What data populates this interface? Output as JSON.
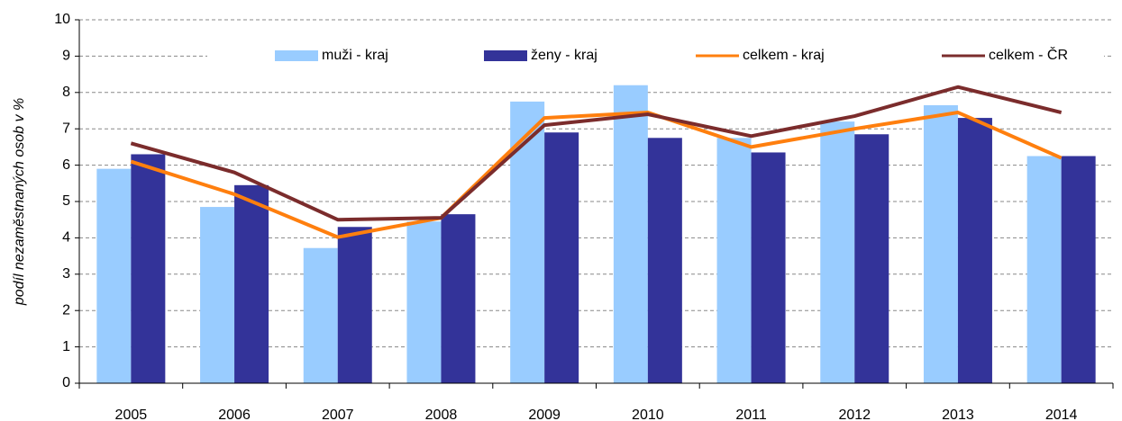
{
  "chart_data": {
    "type": "bar_line",
    "y_label": "podíl nezaměstnaných osob v %",
    "categories": [
      "2005",
      "2006",
      "2007",
      "2008",
      "2009",
      "2010",
      "2011",
      "2012",
      "2013",
      "2014"
    ],
    "series": [
      {
        "name": "muži - kraj",
        "kind": "bar",
        "color": "#99ccff",
        "values": [
          5.9,
          4.85,
          3.72,
          4.45,
          7.75,
          8.2,
          6.75,
          7.2,
          7.65,
          6.25
        ]
      },
      {
        "name": "ženy - kraj",
        "kind": "bar",
        "color": "#333399",
        "values": [
          6.3,
          5.45,
          4.3,
          4.65,
          6.9,
          6.75,
          6.35,
          6.85,
          7.3,
          6.25
        ]
      },
      {
        "name": "celkem - kraj",
        "kind": "line",
        "color": "#ff7f0e",
        "values": [
          6.1,
          5.2,
          4.02,
          4.55,
          7.3,
          7.45,
          6.5,
          7.0,
          7.45,
          6.2
        ]
      },
      {
        "name": "celkem - ČR",
        "kind": "line",
        "color": "#7b2c2c",
        "values": [
          6.6,
          5.8,
          4.5,
          4.55,
          7.1,
          7.4,
          6.8,
          7.35,
          8.15,
          7.45
        ]
      }
    ],
    "ylim": [
      0,
      10
    ],
    "yticks": [
      0,
      1,
      2,
      3,
      4,
      5,
      6,
      7,
      8,
      9,
      10
    ],
    "grid": true,
    "legend": "top"
  }
}
